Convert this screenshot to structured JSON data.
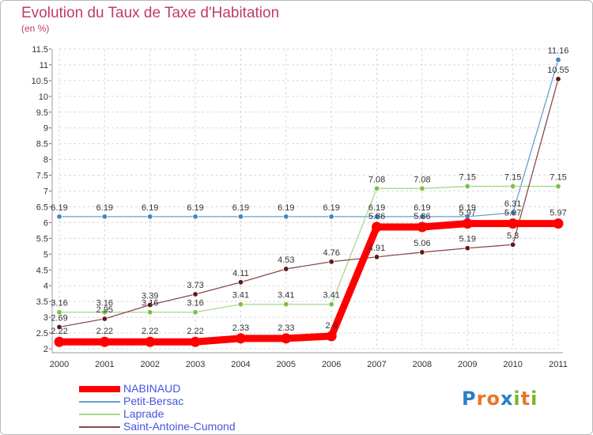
{
  "title": "Evolution du Taux de Taxe d'Habitation",
  "unit": "(en %)",
  "logo": {
    "letters": [
      "P",
      "r",
      "o",
      "x",
      "i",
      "t",
      "i"
    ],
    "colors": [
      "#2b7fc7",
      "#e8762b",
      "#e8762b",
      "#2b7fc7",
      "#77b82a",
      "#e8762b",
      "#77b82a"
    ]
  },
  "chart_data": {
    "type": "line",
    "title": "Evolution du Taux de Taxe d'Habitation",
    "ylabel": "(en %)",
    "xlabel": "",
    "x": [
      2000,
      2001,
      2002,
      2003,
      2004,
      2005,
      2006,
      2007,
      2008,
      2009,
      2010,
      2011
    ],
    "ylim": [
      2,
      11.5
    ],
    "yticks": [
      2,
      2.5,
      3,
      3.5,
      4,
      4.5,
      5,
      5.5,
      6,
      6.5,
      7,
      7.5,
      8,
      8.5,
      9,
      9.5,
      10,
      10.5,
      11,
      11.5
    ],
    "ytick_labels": [
      "2",
      "2.5",
      "3",
      "3.5",
      "4",
      "4.5",
      "5",
      "5.5",
      "6",
      "6.5",
      "7",
      "7.5",
      "8",
      "8.5",
      "9",
      "9.5",
      "10",
      "10.5",
      "11",
      "11.5"
    ],
    "grid": true,
    "legend_position": "bottom-left",
    "series": [
      {
        "name": "Petit-Bersac",
        "color": "#6a9fcf",
        "marker": "#3d86c8",
        "values": [
          6.19,
          6.19,
          6.19,
          6.19,
          6.19,
          6.19,
          6.19,
          6.19,
          6.19,
          6.19,
          6.31,
          11.16
        ],
        "labels": [
          "6.19",
          "6.19",
          "6.19",
          "6.19",
          "6.19",
          "6.19",
          "6.19",
          "6.19",
          "6.19",
          "6.19",
          "6.31",
          "11.16"
        ]
      },
      {
        "name": "Laprade",
        "color": "#a8d888",
        "marker": "#7ac143",
        "values": [
          3.16,
          3.16,
          3.16,
          3.16,
          3.41,
          3.41,
          3.41,
          7.08,
          7.08,
          7.15,
          7.15,
          7.15
        ],
        "labels": [
          "3.16",
          "3.16",
          "3.16",
          "3.16",
          "3.41",
          "3.41",
          "3.41",
          "7.08",
          "7.08",
          "7.15",
          "7.15",
          "7.15"
        ]
      },
      {
        "name": "Saint-Antoine-Cumond",
        "color": "#8c4a4a",
        "marker": "#5e1a1a",
        "values": [
          2.69,
          2.95,
          3.39,
          3.73,
          4.11,
          4.53,
          4.76,
          4.91,
          5.06,
          5.19,
          5.3,
          10.55
        ],
        "labels": [
          "2.69",
          "2.95",
          "3.39",
          "3.73",
          "4.11",
          "4.53",
          "4.76",
          "4.91",
          "5.06",
          "5.19",
          "5.3",
          "10.55"
        ]
      },
      {
        "name": "NABINAUD",
        "color": "#ff0000",
        "marker": "#ff0000",
        "values": [
          2.22,
          2.22,
          2.22,
          2.22,
          2.33,
          2.33,
          2.4,
          5.86,
          5.86,
          5.97,
          5.97,
          5.97
        ],
        "labels": [
          "2.22",
          "2.22",
          "2.22",
          "2.22",
          "2.33",
          "2.33",
          "2.4",
          "5.86",
          "5.86",
          "5.97",
          "5.97",
          "5.97"
        ]
      }
    ],
    "legend": [
      "NABINAUD",
      "Petit-Bersac",
      "Laprade",
      "Saint-Antoine-Cumond"
    ]
  }
}
